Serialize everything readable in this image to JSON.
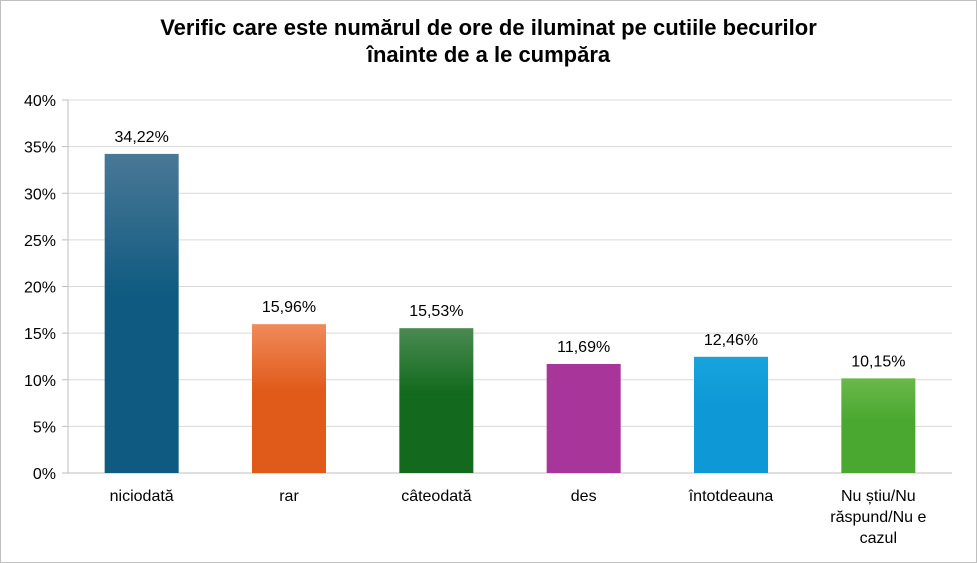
{
  "chart_data": {
    "type": "bar",
    "title_lines": [
      "Verific care este numărul de ore de iluminat pe cutiile becurilor",
      "înainte de a le cumpăra"
    ],
    "categories": [
      "niciodată",
      "rar",
      "câteodată",
      "des",
      "întotdeauna",
      "Nu știu/Nu răspund/Nu e cazul"
    ],
    "category_lines": [
      [
        "niciodată"
      ],
      [
        "rar"
      ],
      [
        "câteodată"
      ],
      [
        "des"
      ],
      [
        "întotdeauna"
      ],
      [
        "Nu știu/Nu",
        "răspund/Nu e",
        "cazul"
      ]
    ],
    "values": [
      34.22,
      15.96,
      15.53,
      11.69,
      12.46,
      10.15
    ],
    "data_labels": [
      "34,22%",
      "15,96%",
      "15,53%",
      "11,69%",
      "12,46%",
      "10,15%"
    ],
    "y_ticks": [
      "0%",
      "5%",
      "10%",
      "15%",
      "20%",
      "25%",
      "30%",
      "35%",
      "40%"
    ],
    "ylim": [
      0,
      40
    ],
    "grid": true,
    "legend": "none",
    "bar_colors": [
      [
        "#4a7896",
        "#0e5a80"
      ],
      [
        "#f08a5a",
        "#e05a1a"
      ],
      [
        "#4a8a52",
        "#136a1e"
      ],
      [
        "#a8359a",
        "#a8359a"
      ],
      [
        "#17a4dc",
        "#0e98d6"
      ],
      [
        "#6ab84a",
        "#4aa830"
      ]
    ],
    "axis_color": "#bfbfbf",
    "grid_color": "#d9d9d9"
  }
}
